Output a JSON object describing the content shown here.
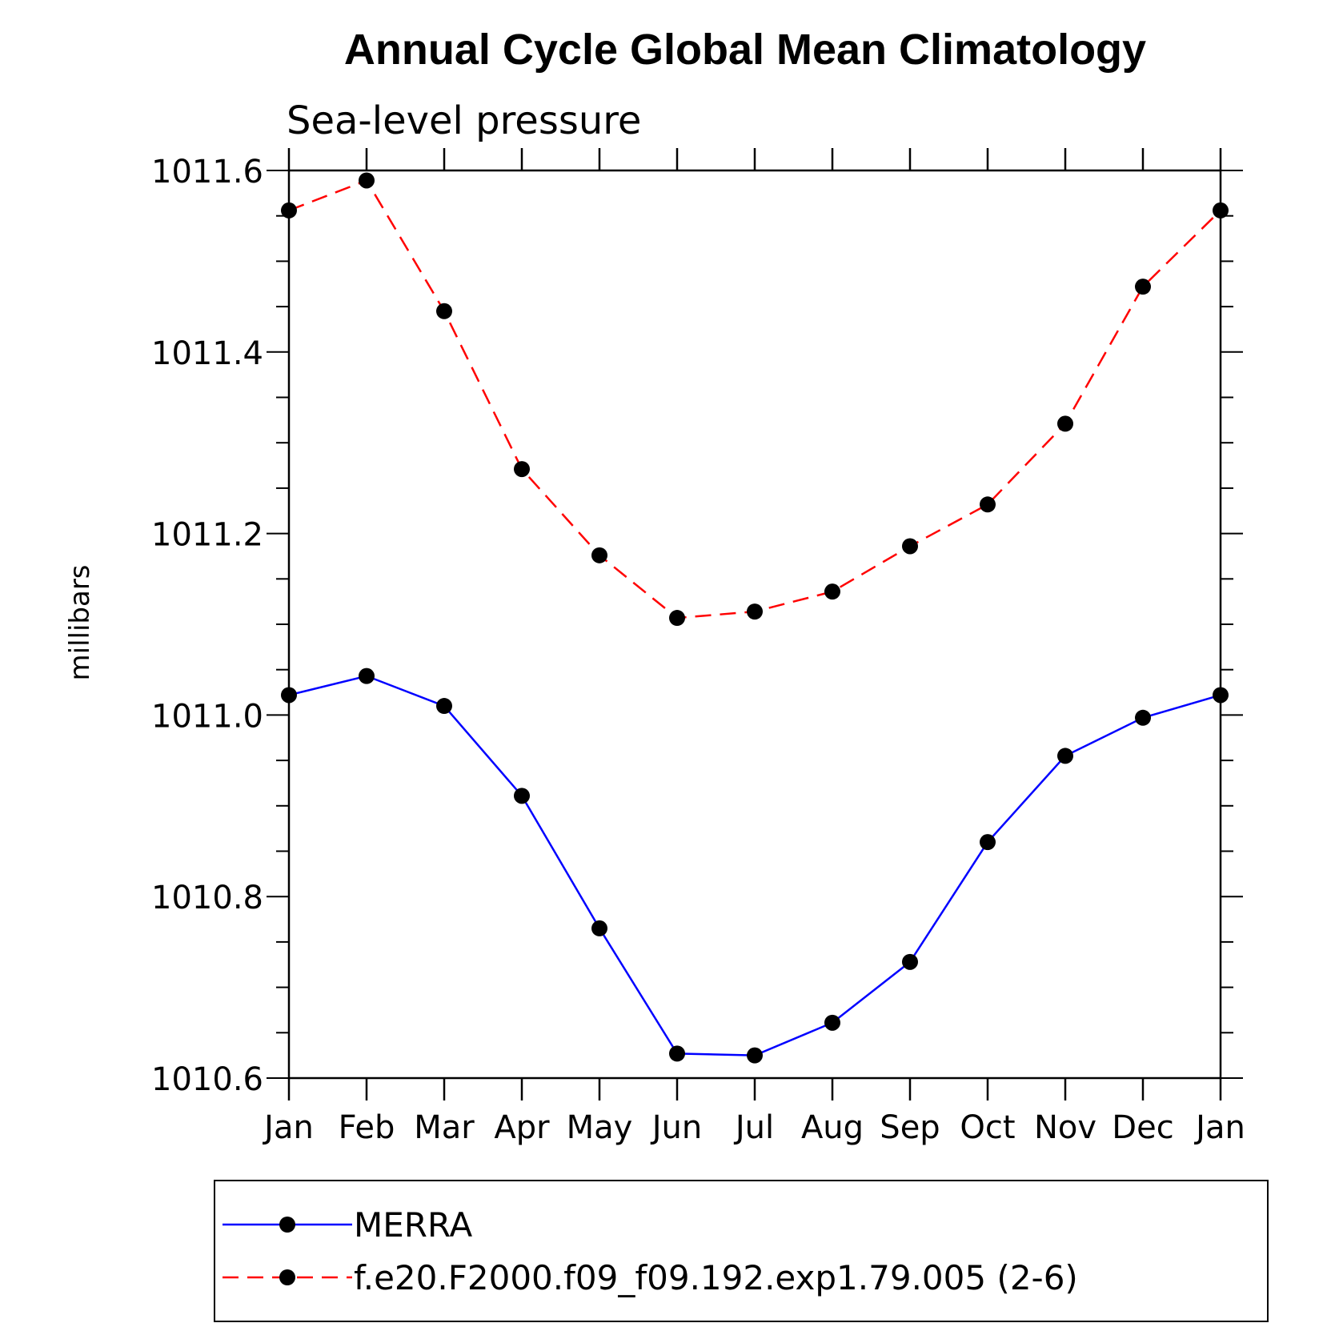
{
  "chart_data": {
    "type": "line",
    "title": "Annual Cycle Global Mean Climatology",
    "subtitle": "Sea-level pressure",
    "xlabel": "",
    "ylabel": "millibars",
    "ylim": [
      1010.6,
      1011.6
    ],
    "yticks": [
      "1010.6",
      "1010.8",
      "1011.0",
      "1011.2",
      "1011.4",
      "1011.6"
    ],
    "categories": [
      "Jan",
      "Feb",
      "Mar",
      "Apr",
      "May",
      "Jun",
      "Jul",
      "Aug",
      "Sep",
      "Oct",
      "Nov",
      "Dec",
      "Jan"
    ],
    "series": [
      {
        "name": "MERRA",
        "color": "#0000ff",
        "line_style": "solid",
        "marker": "filled-circle",
        "values": [
          1011.022,
          1011.043,
          1011.01,
          1010.911,
          1010.765,
          1010.627,
          1010.625,
          1010.661,
          1010.728,
          1010.86,
          1010.955,
          1010.997,
          1011.022
        ]
      },
      {
        "name": "f.e20.F2000.f09_f09.192.exp1.79.005 (2-6)",
        "color": "#ff0000",
        "line_style": "dashed",
        "marker": "filled-circle",
        "values": [
          1011.556,
          1011.589,
          1011.445,
          1011.271,
          1011.176,
          1011.107,
          1011.114,
          1011.136,
          1011.186,
          1011.232,
          1011.321,
          1011.472,
          1011.556
        ]
      }
    ],
    "grid": false,
    "legend_position": "bottom"
  }
}
